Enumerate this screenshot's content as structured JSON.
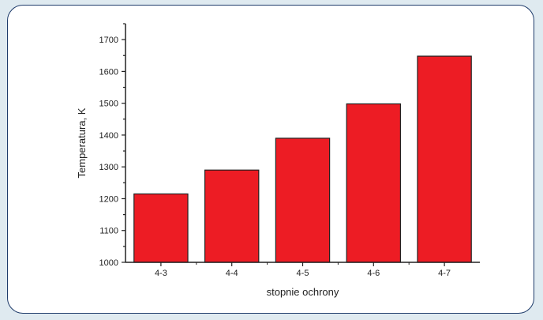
{
  "chart_data": {
    "type": "bar",
    "categories": [
      "4-3",
      "4-4",
      "4-5",
      "4-6",
      "4-7"
    ],
    "values": [
      1215,
      1290,
      1390,
      1498,
      1648
    ],
    "xlabel": "stopnie ochrony",
    "ylabel": "Temperatura, K",
    "ylim": [
      1000,
      1750
    ],
    "yticks": [
      1000,
      1100,
      1200,
      1300,
      1400,
      1500,
      1600,
      1700
    ],
    "yticks_labels": [
      "1000",
      "1100",
      "1200",
      "1300",
      "1400",
      "1500",
      "1600",
      "1700"
    ],
    "grid": false,
    "bar_color": "#ed1c24",
    "bar_edge_color": "#222222",
    "frame_color": "#1f3c6b"
  }
}
